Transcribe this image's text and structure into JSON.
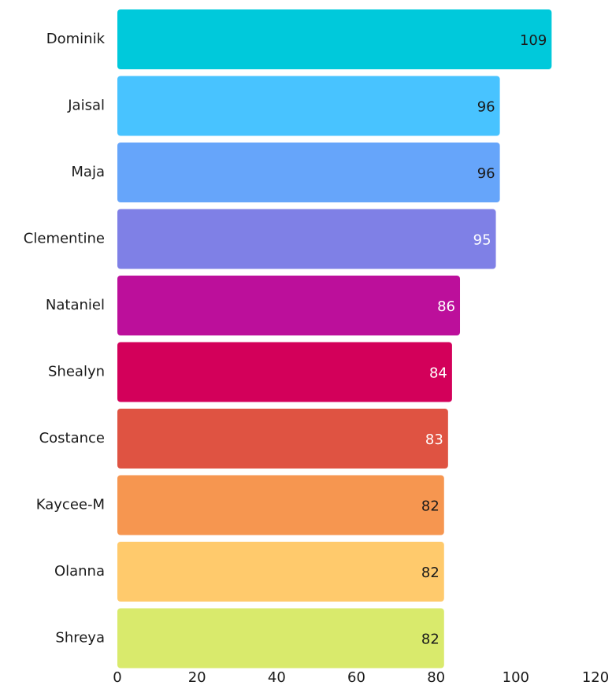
{
  "chart_data": {
    "type": "bar",
    "orientation": "horizontal",
    "title": "",
    "xlabel": "",
    "ylabel": "",
    "categories": [
      "Dominik",
      "Jaisal",
      "Maja",
      "Clementine",
      "Nataniel",
      "Shealyn",
      "Costance",
      "Kaycee-M",
      "Olanna",
      "Shreya"
    ],
    "values": [
      109,
      96,
      96,
      95,
      86,
      84,
      83,
      82,
      82,
      82
    ],
    "value_labels": [
      "109",
      "96",
      "96",
      "95",
      "86",
      "84",
      "83",
      "82",
      "82",
      "82"
    ],
    "colors": [
      "#00c9db",
      "#48c3ff",
      "#66a5fa",
      "#7f80e6",
      "#bc0f9b",
      "#d3005a",
      "#df5342",
      "#f69650",
      "#ffca6c",
      "#d9ea6c"
    ],
    "label_colors": [
      "#1a1a1a",
      "#1a1a1a",
      "#1a1a1a",
      "#ffffff",
      "#ffffff",
      "#ffffff",
      "#ffffff",
      "#1a1a1a",
      "#1a1a1a",
      "#1a1a1a"
    ],
    "xlim": [
      0,
      120
    ],
    "x_ticks": [
      "0",
      "20",
      "40",
      "60",
      "80",
      "100",
      "120"
    ],
    "grid": false,
    "legend": "none"
  }
}
